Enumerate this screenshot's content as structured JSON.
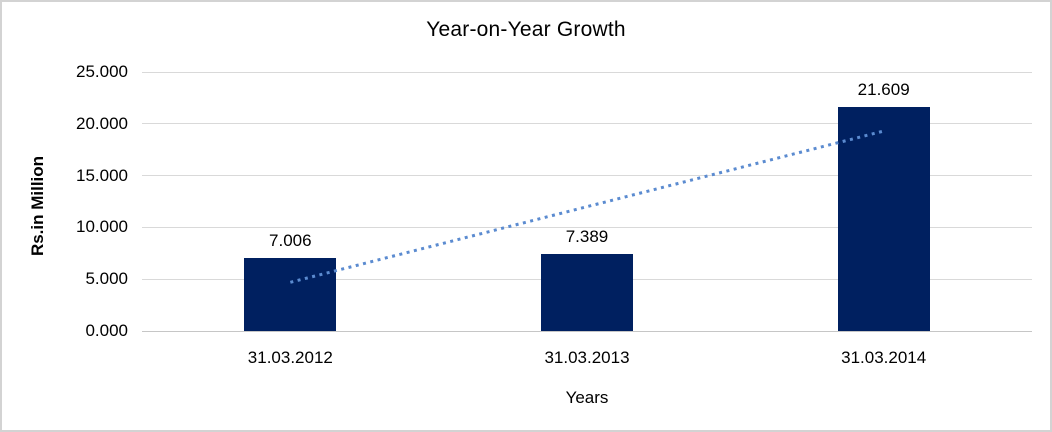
{
  "chart_data": {
    "type": "bar",
    "title": "Year-on-Year Growth",
    "xlabel": "Years",
    "ylabel": "Rs.in Million",
    "categories": [
      "31.03.2012",
      "31.03.2013",
      "31.03.2014"
    ],
    "series": [
      {
        "values": [
          7.006,
          7.389,
          21.609
        ],
        "data_labels": [
          "7.006",
          "7.389",
          "21.609"
        ]
      }
    ],
    "ylim": [
      0,
      25
    ],
    "yticks": [
      {
        "value": 0,
        "label": "0.000"
      },
      {
        "value": 5,
        "label": "5.000"
      },
      {
        "value": 10,
        "label": "10.000"
      },
      {
        "value": 15,
        "label": "15.000"
      },
      {
        "value": 20,
        "label": "20.000"
      },
      {
        "value": 25,
        "label": "25.000"
      }
    ],
    "grid": "horizontal",
    "legend": "none",
    "trendline": {
      "type": "linear",
      "style": "dotted",
      "start": {
        "category_index": 0,
        "value": 4.7
      },
      "end": {
        "category_index": 2,
        "value": 19.3
      }
    }
  },
  "colors": {
    "bar": "#002060",
    "gridline": "#d9d9d9",
    "axis_line": "#c6c6c6",
    "trendline": "#5b8bd0",
    "frame_border": "#d3d3d3",
    "text": "#000000",
    "background": "#ffffff"
  }
}
